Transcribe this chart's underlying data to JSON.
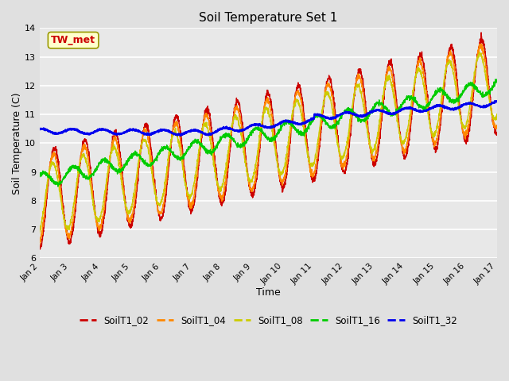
{
  "title": "Soil Temperature Set 1",
  "xlabel": "Time",
  "ylabel": "Soil Temperature (C)",
  "ylim": [
    6.0,
    14.0
  ],
  "xlim_days": [
    2,
    17
  ],
  "background_color": "#e0e0e0",
  "plot_bg_color": "#e8e8e8",
  "grid_color": "#ffffff",
  "colors": {
    "SoilT1_02": "#cc0000",
    "SoilT1_04": "#ff8800",
    "SoilT1_08": "#cccc00",
    "SoilT1_16": "#00cc00",
    "SoilT1_32": "#0000ee"
  },
  "legend_label": "TW_met",
  "yticks": [
    6.0,
    7.0,
    8.0,
    9.0,
    10.0,
    11.0,
    12.0,
    13.0,
    14.0
  ],
  "xtick_labels": [
    "Jan 2",
    "Jan 3",
    "Jan 4",
    "Jan 5",
    "Jan 6",
    "Jan 7",
    "Jan 8",
    "Jan 9",
    "Jan 10",
    "Jan 11",
    "Jan 12",
    "Jan 13",
    "Jan 14",
    "Jan 15",
    "Jan 16",
    "Jan 17"
  ],
  "xtick_positions": [
    2,
    3,
    4,
    5,
    6,
    7,
    8,
    9,
    10,
    11,
    12,
    13,
    14,
    15,
    16,
    17
  ]
}
